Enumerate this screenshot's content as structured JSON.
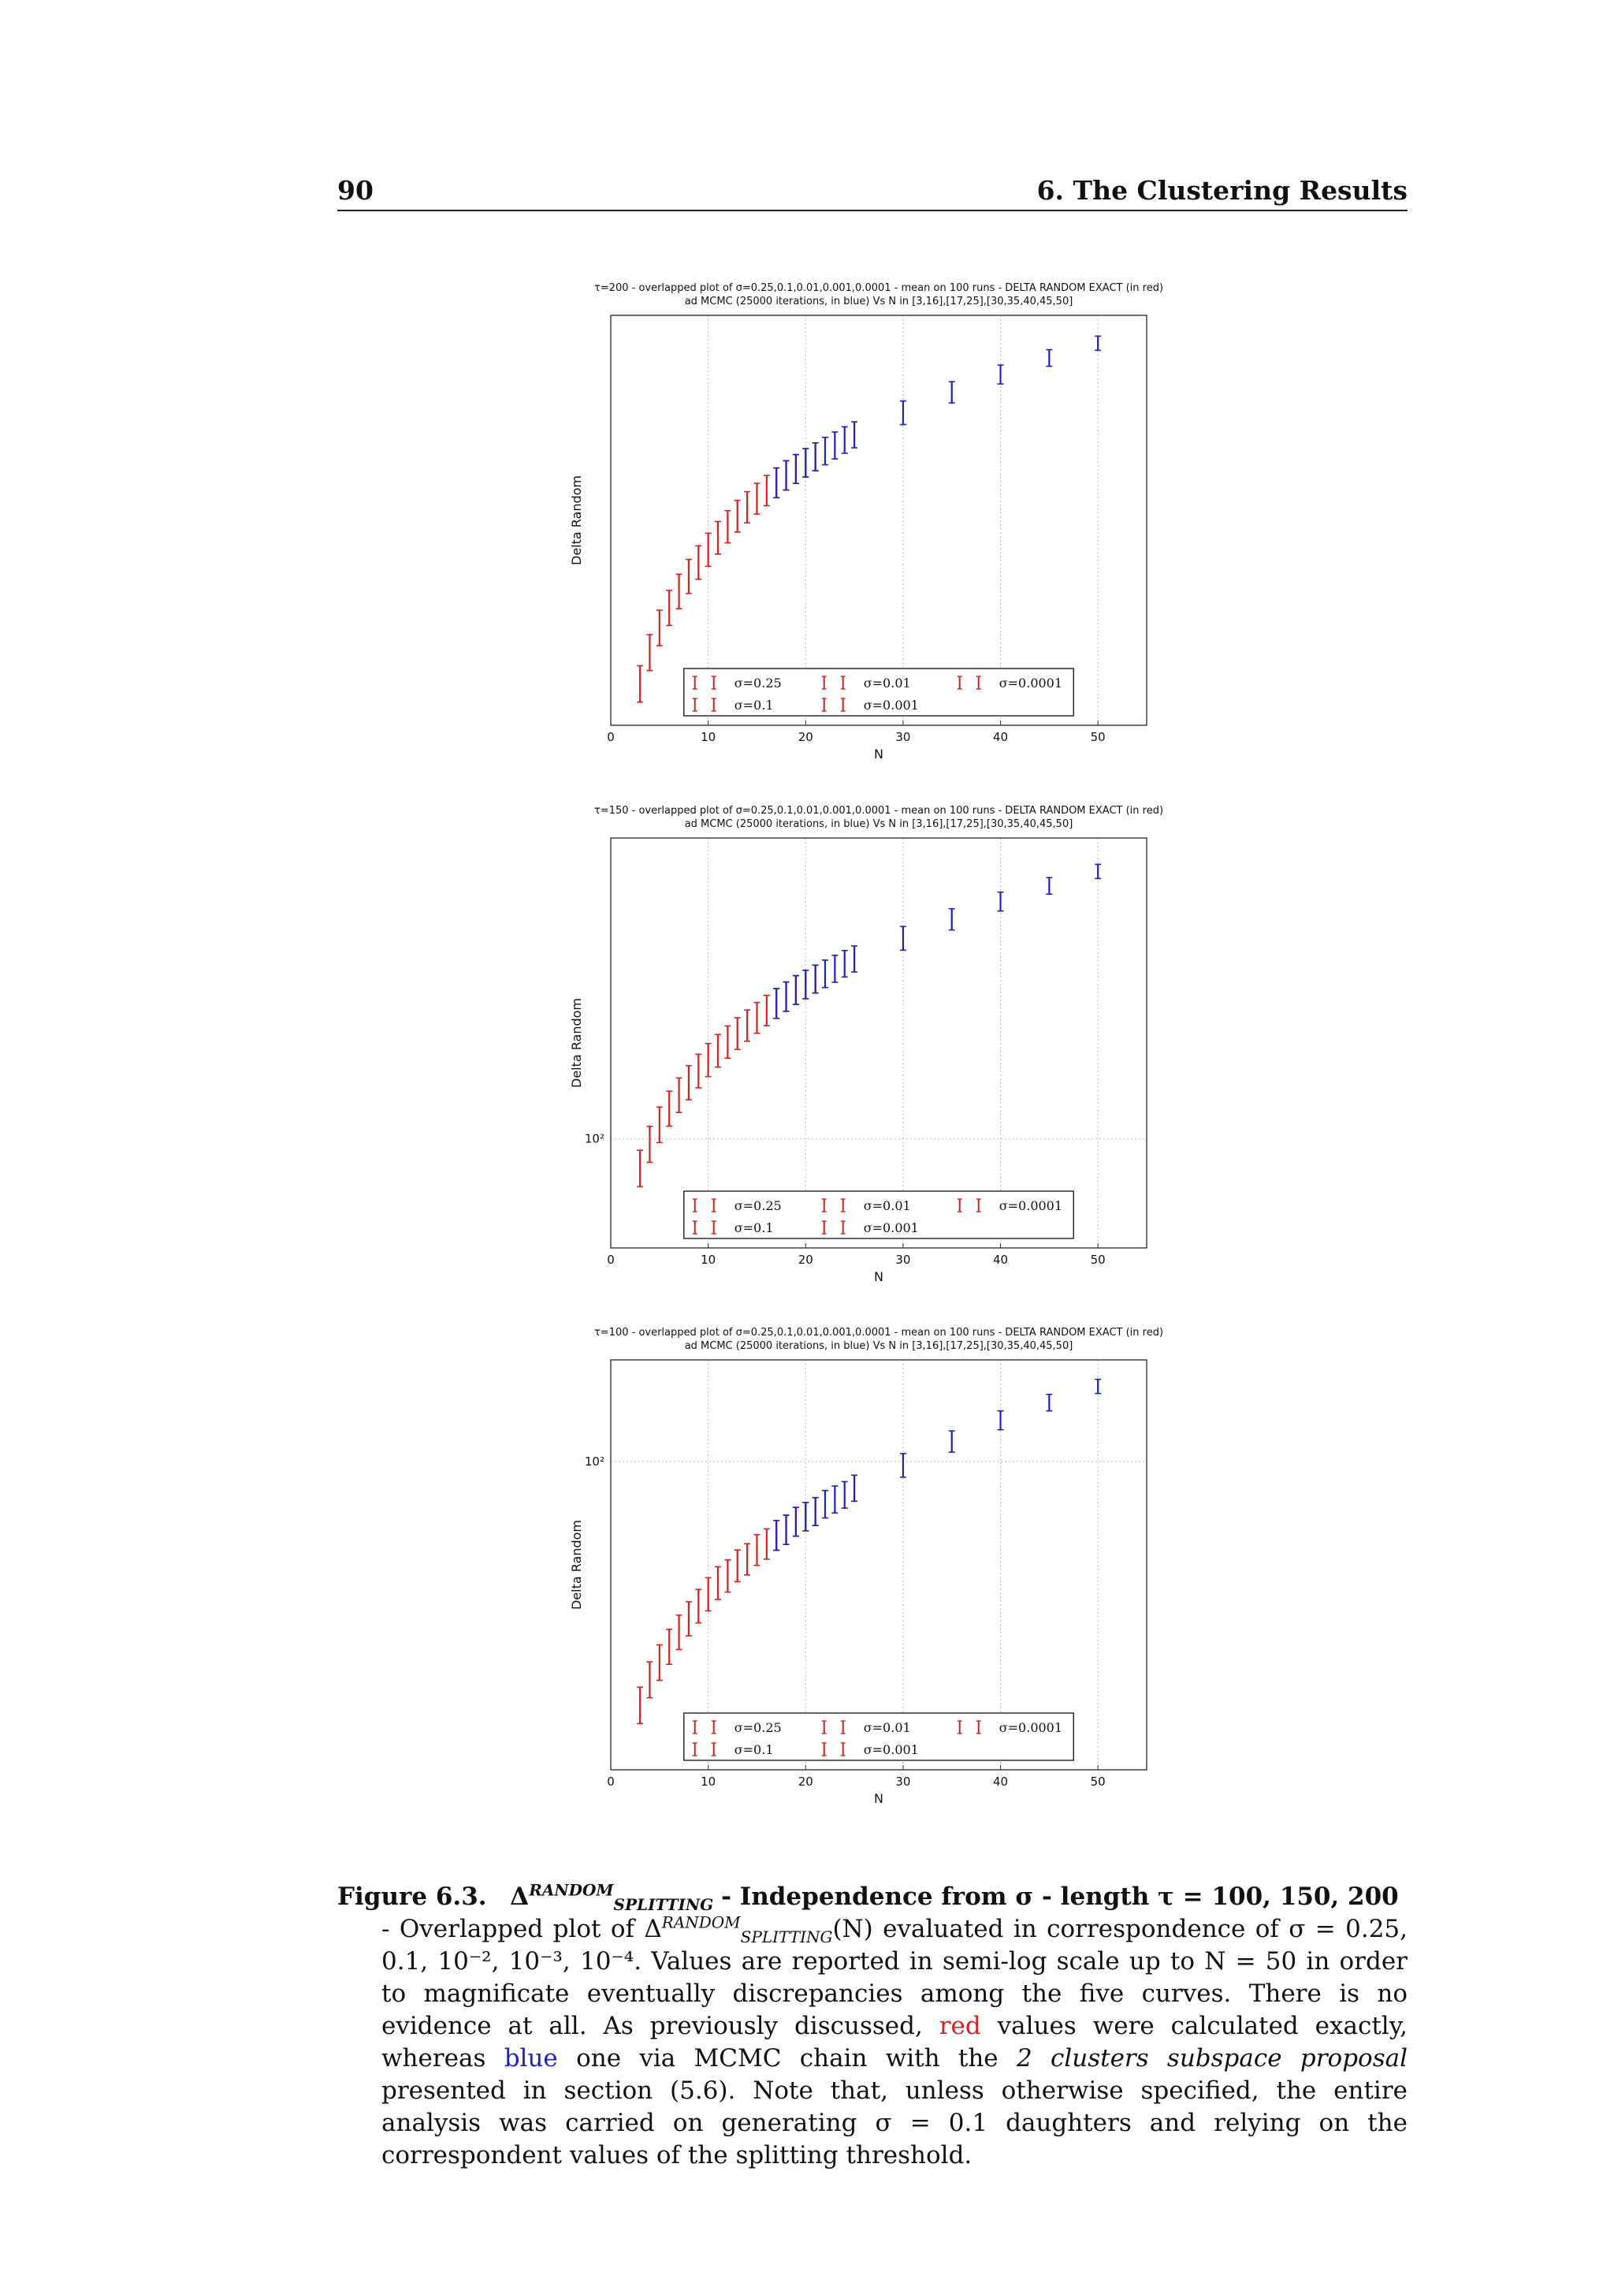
{
  "header": {
    "page_number": "90",
    "running_head": "6. The Clustering Results"
  },
  "chart_data": [
    {
      "type": "scatter",
      "title": "τ=200 - overlapped plot of σ=0.25,0.1,0.01,0.001,0.0001 - mean on 100 runs - DELTA RANDOM EXACT (in red)",
      "subtitle": "ad MCMC (25000 iterations, in blue) Vs N in [3,16],[17,25],[30,35,40,45,50]",
      "xlabel": "N",
      "ylabel": "Delta Random",
      "xlim": [
        0,
        55
      ],
      "xticks": [
        "0",
        "10",
        "20",
        "30",
        "40",
        "50"
      ],
      "yscale": "log",
      "ylim": [
        55,
        600
      ],
      "yticks": [],
      "grid": true,
      "legend_position": "lower-right",
      "legend": [
        "σ=0.25",
        "σ=0.1",
        "σ=0.01",
        "σ=0.001",
        "σ=0.0001"
      ],
      "series": [
        {
          "name": "exact",
          "color": "#d62020",
          "x": [
            3,
            4,
            5,
            6,
            7,
            8,
            9,
            10,
            11,
            12,
            13,
            14,
            15,
            16,
            17,
            18,
            19,
            20,
            21
          ],
          "y": [
            70,
            84,
            97,
            109,
            120,
            131,
            142,
            153,
            164,
            175,
            186,
            196,
            206,
            216,
            226,
            236,
            245,
            254,
            263
          ]
        },
        {
          "name": "MCMC",
          "color": "#2020c0",
          "x": [
            17,
            18,
            19,
            20,
            21,
            22,
            23,
            24,
            25,
            30,
            35,
            40,
            45,
            50
          ],
          "y": [
            226,
            236,
            245,
            254,
            263,
            272,
            281,
            290,
            299,
            340,
            383,
            425,
            468,
            510
          ]
        }
      ]
    },
    {
      "type": "scatter",
      "title": "τ=150 - overlapped plot of σ=0.25,0.1,0.01,0.001,0.0001 - mean on 100 runs - DELTA RANDOM EXACT (in red)",
      "subtitle": "ad MCMC (25000 iterations, in blue) Vs N in [3,16],[17,25],[30,35,40,45,50]",
      "xlabel": "N",
      "ylabel": "Delta Random",
      "xlim": [
        0,
        55
      ],
      "xticks": [
        "0",
        "10",
        "20",
        "30",
        "40",
        "50"
      ],
      "yscale": "log",
      "ylim": [
        55,
        520
      ],
      "yticks": [
        "10²"
      ],
      "grid": true,
      "legend_position": "lower-right",
      "legend": [
        "σ=0.25",
        "σ=0.1",
        "σ=0.01",
        "σ=0.001",
        "σ=0.0001"
      ],
      "series": [
        {
          "name": "exact",
          "color": "#d62020",
          "x": [
            3,
            4,
            5,
            6,
            7,
            8,
            9,
            10,
            11,
            12,
            13,
            14,
            15,
            16,
            17,
            18,
            19,
            20,
            21
          ],
          "y": [
            85,
            97,
            108,
            118,
            127,
            136,
            145,
            154,
            162,
            170,
            178,
            186,
            194,
            202,
            210,
            218,
            226,
            233,
            240
          ]
        },
        {
          "name": "MCMC",
          "color": "#2020c0",
          "x": [
            17,
            18,
            19,
            20,
            21,
            22,
            23,
            24,
            25,
            30,
            35,
            40,
            45,
            50
          ],
          "y": [
            210,
            218,
            226,
            233,
            240,
            247,
            254,
            261,
            268,
            300,
            333,
            367,
            400,
            433
          ]
        }
      ]
    },
    {
      "type": "scatter",
      "title": "τ=100 - overlapped plot of σ=0.25,0.1,0.01,0.001,0.0001 - mean on 100 runs - DELTA RANDOM EXACT (in red)",
      "subtitle": "ad MCMC (25000 iterations, in blue) Vs N in [3,16],[17,25],[30,35,40,45,50]",
      "xlabel": "N",
      "ylabel": "Delta Random",
      "xlim": [
        0,
        55
      ],
      "xticks": [
        "0",
        "10",
        "20",
        "30",
        "40",
        "50"
      ],
      "yscale": "log",
      "ylim": [
        20,
        170
      ],
      "yticks": [
        "10²"
      ],
      "grid": true,
      "legend_position": "lower-right",
      "legend": [
        "σ=0.25",
        "σ=0.1",
        "σ=0.01",
        "σ=0.001",
        "σ=0.0001"
      ],
      "series": [
        {
          "name": "exact",
          "color": "#d62020",
          "x": [
            3,
            4,
            5,
            6,
            7,
            8,
            9,
            10,
            11,
            12,
            13,
            14,
            15,
            16,
            17,
            18,
            19,
            20,
            21
          ],
          "y": [
            28,
            32,
            35,
            38,
            41,
            44,
            47,
            50,
            53,
            55,
            58,
            60,
            63,
            65,
            68,
            70,
            73,
            75,
            77
          ]
        },
        {
          "name": "MCMC",
          "color": "#2020c0",
          "x": [
            17,
            18,
            19,
            20,
            21,
            22,
            23,
            24,
            25,
            30,
            35,
            40,
            45,
            50
          ],
          "y": [
            68,
            70,
            73,
            75,
            77,
            80,
            82,
            84,
            87,
            98,
            111,
            124,
            136,
            148
          ]
        }
      ]
    }
  ],
  "caption": {
    "label": "Figure 6.3.",
    "delta": "Δ",
    "sup": "RANDOM",
    "sub": "SPLITTING",
    "title_tail": "- Independence from σ - length τ = 100, 150, 200",
    "t1": "- Overlapped plot of",
    "t2": "(N) evaluated in correspondence of σ = 0.25, 0.1, 10⁻², 10⁻³, 10⁻⁴. Values are reported in semi-log scale up to N = 50 in order to magnificate eventually discrepancies among the five curves. There is no evidence at all. As previously discussed,",
    "red_word": "red",
    "t3": "values were calculated exactly, whereas",
    "blue_word": "blue",
    "t4": "one via MCMC chain with the",
    "italic": "2 clusters subspace proposal",
    "t5": "presented in section (5.6). Note that, unless otherwise specified, the entire analysis was carried on generating σ = 0.1 daughters and relying on the correspondent values of the splitting threshold."
  }
}
